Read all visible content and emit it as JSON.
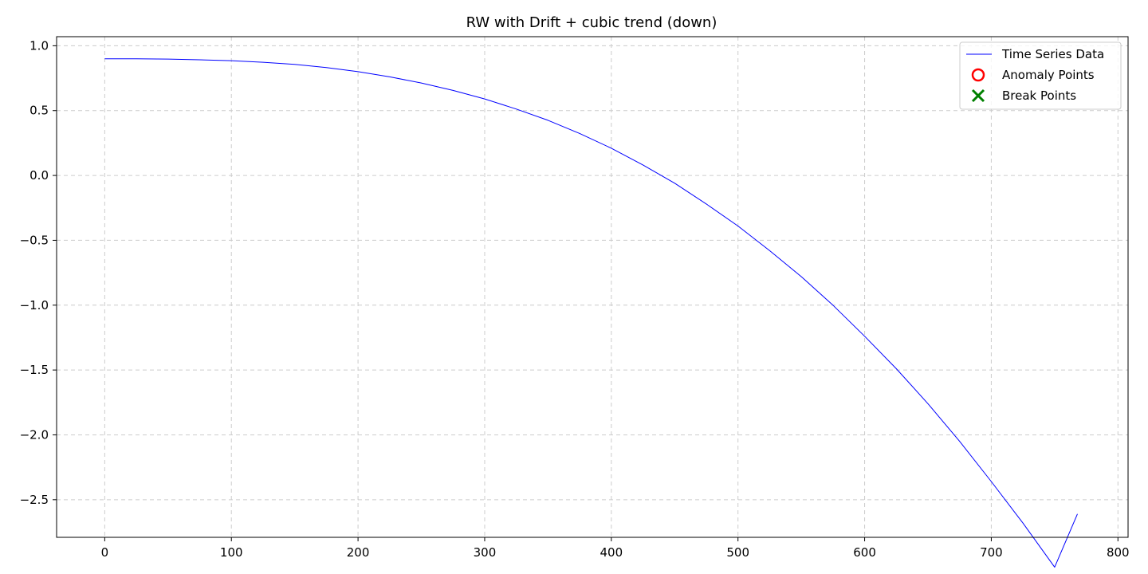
{
  "chart_data": {
    "type": "line",
    "title": "RW with Drift + cubic trend (down)",
    "xlabel": "",
    "ylabel": "",
    "xlim": [
      -38,
      808
    ],
    "ylim": [
      -2.79,
      1.07
    ],
    "xticks": [
      0,
      100,
      200,
      300,
      400,
      500,
      600,
      700,
      800
    ],
    "yticks": [
      1.0,
      0.5,
      0.0,
      -0.5,
      -1.0,
      -1.5,
      -2.0,
      -2.5
    ],
    "ytick_labels": [
      "1.0",
      "0.5",
      "0.0",
      "−0.5",
      "−1.0",
      "−1.5",
      "−2.0",
      "−2.5"
    ],
    "grid": true,
    "legend_position": "top-right",
    "series": [
      {
        "name": "Time Series Data",
        "kind": "line",
        "color": "#0000ff",
        "x": [
          0,
          25,
          50,
          75,
          100,
          125,
          150,
          175,
          200,
          225,
          250,
          275,
          300,
          325,
          350,
          375,
          400,
          425,
          450,
          475,
          500,
          525,
          550,
          575,
          600,
          625,
          650,
          675,
          700,
          725,
          750,
          768
        ],
        "y": [
          0.9,
          0.899,
          0.897,
          0.892,
          0.885,
          0.873,
          0.856,
          0.832,
          0.8,
          0.76,
          0.713,
          0.656,
          0.59,
          0.512,
          0.425,
          0.324,
          0.21,
          0.081,
          -0.06,
          -0.22,
          -0.39,
          -0.58,
          -0.78,
          -1.0,
          -1.24,
          -1.49,
          -1.76,
          -2.05,
          -2.36,
          -2.68,
          -3.02,
          -2.61
        ]
      },
      {
        "name": "Anomaly Points",
        "kind": "marker-circle",
        "color": "#ff0000",
        "x": [],
        "y": []
      },
      {
        "name": "Break Points",
        "kind": "marker-x",
        "color": "#008000",
        "x": [],
        "y": []
      }
    ]
  }
}
